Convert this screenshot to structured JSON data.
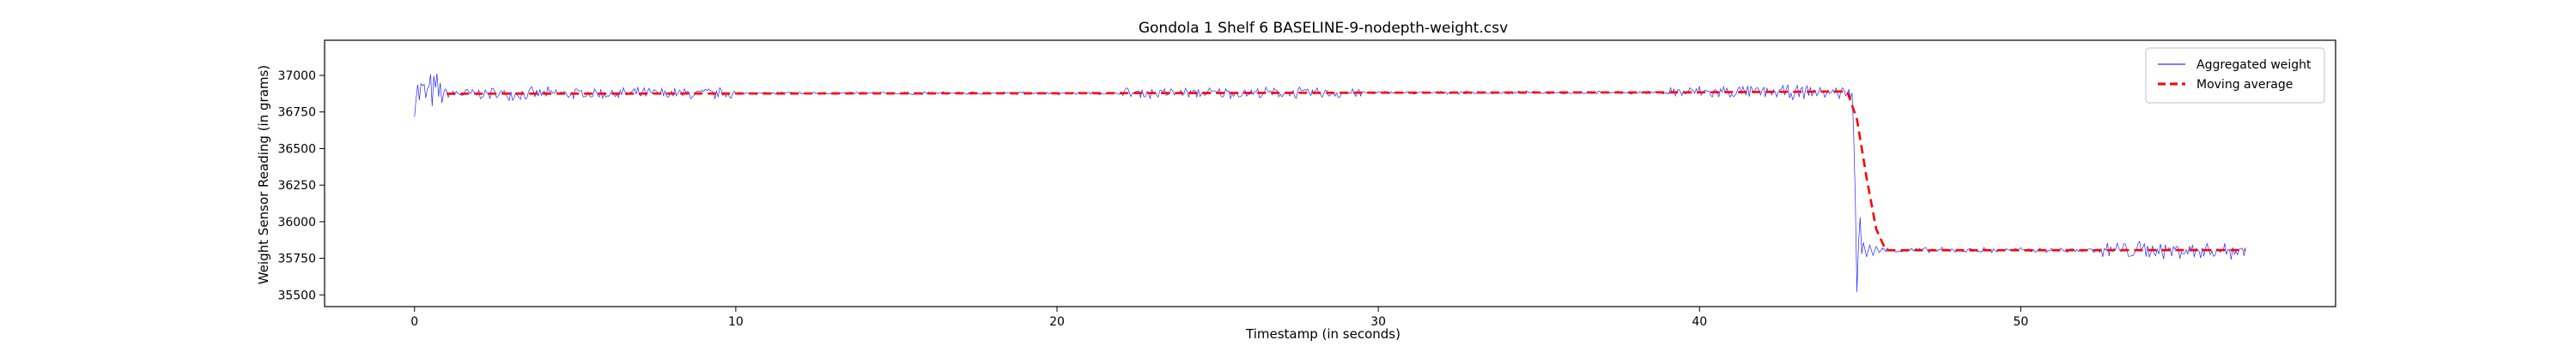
{
  "chart_data": {
    "type": "line",
    "title": "Gondola 1 Shelf 6 BASELINE-9-nodepth-weight.csv",
    "xlabel": "Timestamp (in seconds)",
    "ylabel": "Weight Sensor Reading (in grams)",
    "xlim": [
      -2.8,
      59.8
    ],
    "ylim": [
      35420,
      37240
    ],
    "xticks": [
      0,
      10,
      20,
      30,
      40,
      50
    ],
    "yticks": [
      35500,
      35750,
      36000,
      36250,
      36500,
      36750,
      37000
    ],
    "grid": false,
    "legend_position": "top-right",
    "series": [
      {
        "name": "Aggregated weight",
        "color": "#0000ff",
        "style": "solid-thin",
        "segments": [
          {
            "x_start": 0.0,
            "x_end": 0.9,
            "base": 36880,
            "noise": 170,
            "step": 0.05
          },
          {
            "x_start": 0.9,
            "x_end": 10.0,
            "base": 36875,
            "noise": 50,
            "step": 0.05
          },
          {
            "x_start": 10.0,
            "x_end": 22.0,
            "base": 36878,
            "noise": 12,
            "step": 0.05
          },
          {
            "x_start": 22.0,
            "x_end": 29.5,
            "base": 36880,
            "noise": 45,
            "step": 0.05
          },
          {
            "x_start": 29.5,
            "x_end": 39.0,
            "base": 36882,
            "noise": 12,
            "step": 0.05
          },
          {
            "x_start": 39.0,
            "x_end": 44.7,
            "base": 36885,
            "noise": 55,
            "step": 0.05
          }
        ],
        "points": [
          [
            44.75,
            36880
          ],
          [
            44.8,
            36600
          ],
          [
            44.85,
            36150
          ],
          [
            44.9,
            35520
          ],
          [
            44.95,
            35850
          ],
          [
            45.0,
            36030
          ],
          [
            45.05,
            35780
          ],
          [
            45.1,
            35860
          ],
          [
            45.2,
            35760
          ],
          [
            45.3,
            35840
          ],
          [
            45.4,
            35770
          ],
          [
            45.5,
            35830
          ],
          [
            45.6,
            35790
          ],
          [
            45.7,
            35820
          ]
        ],
        "tail_segments": [
          {
            "x_start": 45.7,
            "x_end": 52.5,
            "base": 35805,
            "noise": 22,
            "step": 0.05
          },
          {
            "x_start": 52.5,
            "x_end": 57.0,
            "base": 35805,
            "noise": 75,
            "step": 0.05
          }
        ]
      },
      {
        "name": "Moving average",
        "color": "#ff0000",
        "style": "dashed",
        "points": [
          [
            1.0,
            36875
          ],
          [
            10.0,
            36876
          ],
          [
            20.0,
            36878
          ],
          [
            30.0,
            36882
          ],
          [
            40.0,
            36884
          ],
          [
            44.6,
            36890
          ],
          [
            44.9,
            36700
          ],
          [
            45.2,
            36300
          ],
          [
            45.5,
            35950
          ],
          [
            45.8,
            35805
          ],
          [
            50.0,
            35805
          ],
          [
            57.0,
            35806
          ]
        ]
      }
    ]
  }
}
